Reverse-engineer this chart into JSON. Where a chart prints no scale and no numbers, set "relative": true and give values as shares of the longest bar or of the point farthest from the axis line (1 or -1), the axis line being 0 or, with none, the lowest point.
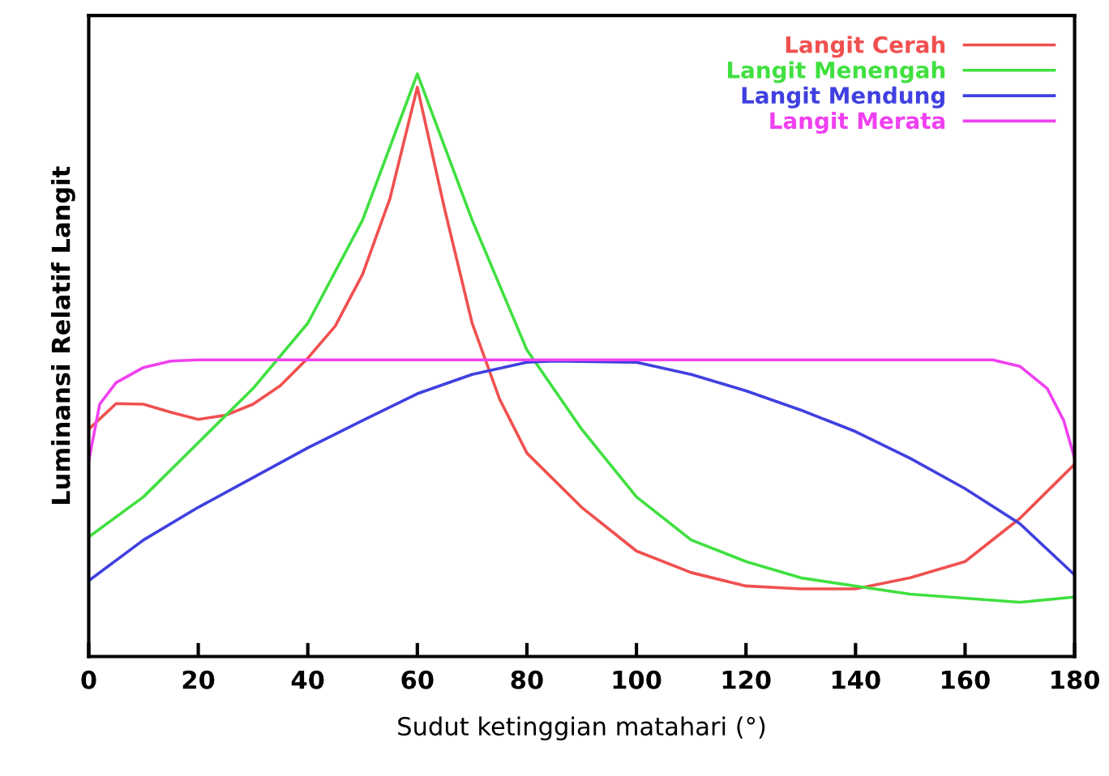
{
  "chart_data": {
    "type": "line",
    "relative": true,
    "xlabel": "Sudut ketinggian matahari (°)",
    "ylabel": "Luminansi Relatif Langit",
    "xlim": [
      0,
      180
    ],
    "xticks": [
      0,
      20,
      40,
      60,
      80,
      100,
      120,
      140,
      160,
      180
    ],
    "grid": false,
    "legend": "top right",
    "series": [
      {
        "name": "Langit Cerah",
        "color": "#f05050",
        "x": [
          0,
          5,
          10,
          15,
          20,
          25,
          30,
          35,
          40,
          45,
          50,
          55,
          60,
          65,
          70,
          75,
          80,
          90,
          100,
          110,
          120,
          130,
          140,
          150,
          160,
          170,
          180
        ],
        "values": [
          0.39,
          0.434,
          0.433,
          0.419,
          0.407,
          0.414,
          0.433,
          0.465,
          0.512,
          0.567,
          0.656,
          0.786,
          0.977,
          0.767,
          0.572,
          0.442,
          0.349,
          0.256,
          0.181,
          0.144,
          0.121,
          0.116,
          0.116,
          0.135,
          0.163,
          0.237,
          0.33
        ]
      },
      {
        "name": "Langit Menengah",
        "color": "#40e040",
        "x": [
          0,
          10,
          20,
          30,
          40,
          50,
          60,
          70,
          80,
          90,
          100,
          110,
          120,
          130,
          140,
          150,
          160,
          170,
          180
        ],
        "values": [
          0.205,
          0.274,
          0.367,
          0.46,
          0.572,
          0.749,
          1.0,
          0.749,
          0.526,
          0.39,
          0.274,
          0.2,
          0.163,
          0.135,
          0.121,
          0.107,
          0.1,
          0.093,
          0.102
        ]
      },
      {
        "name": "Langit Mendung",
        "color": "#4040e0",
        "x": [
          0,
          10,
          20,
          30,
          40,
          50,
          60,
          70,
          80,
          85,
          100,
          110,
          120,
          130,
          140,
          150,
          160,
          170,
          180
        ],
        "values": [
          0.13,
          0.2,
          0.256,
          0.307,
          0.358,
          0.405,
          0.451,
          0.484,
          0.505,
          0.507,
          0.505,
          0.484,
          0.456,
          0.423,
          0.386,
          0.34,
          0.288,
          0.228,
          0.14
        ]
      },
      {
        "name": "Langit Merata",
        "color": "#f040f0",
        "x": [
          0,
          2,
          5,
          10,
          15,
          20,
          165,
          170,
          175,
          178,
          180
        ],
        "values": [
          0.335,
          0.433,
          0.47,
          0.496,
          0.507,
          0.509,
          0.509,
          0.498,
          0.46,
          0.405,
          0.34
        ]
      }
    ]
  }
}
